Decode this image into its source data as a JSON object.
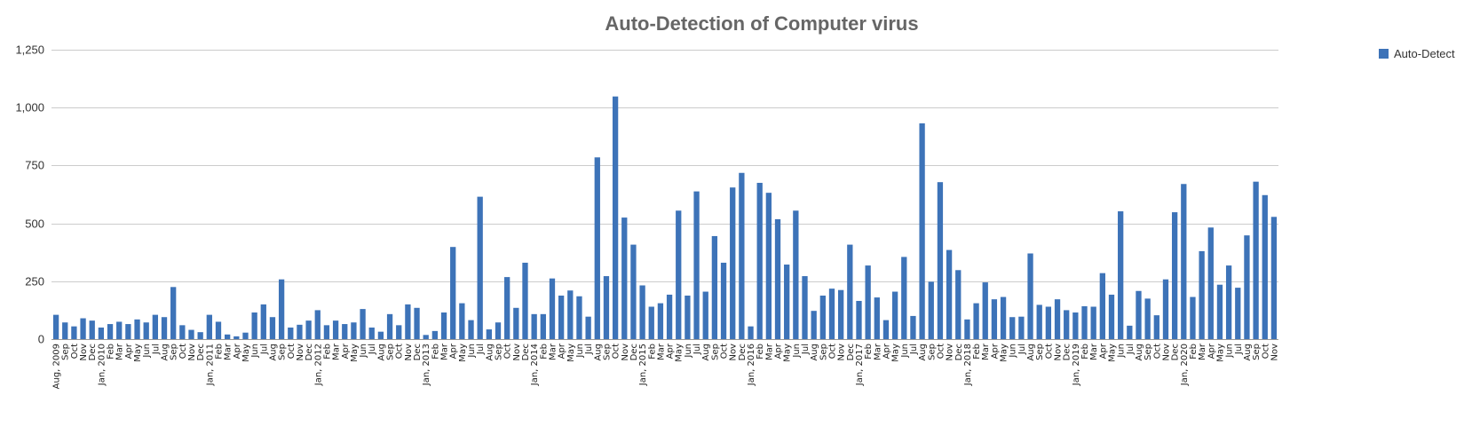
{
  "chart_data": {
    "type": "bar",
    "title": "Auto-Detection of Computer virus",
    "xlabel": "",
    "ylabel": "",
    "ylim": [
      0,
      1250
    ],
    "yticks": [
      "0",
      "250",
      "500",
      "750",
      "1,000",
      "1,250"
    ],
    "ytick_values": [
      0,
      250,
      500,
      750,
      1000,
      1250
    ],
    "grid": true,
    "legend_position": "top-right",
    "color": "#3d73b8",
    "categories": [
      "Aug, 2009",
      "Sep",
      "Oct",
      "Nov",
      "Dec",
      "Jan, 2010",
      "Feb",
      "Mar",
      "Apr",
      "May",
      "Jun",
      "Jul",
      "Aug",
      "Sep",
      "Oct",
      "Nov",
      "Dec",
      "Jan, 2011",
      "Feb",
      "Mar",
      "Apr",
      "May",
      "Jun",
      "Jul",
      "Aug",
      "Sep",
      "Oct",
      "Nov",
      "Dec",
      "Jan, 2012",
      "Feb",
      "Mar",
      "Apr",
      "May",
      "Jun",
      "Jul",
      "Aug",
      "Sep",
      "Oct",
      "Nov",
      "Dec",
      "Jan, 2013",
      "Feb",
      "Mar",
      "Apr",
      "May",
      "Jun",
      "Jul",
      "Aug",
      "Sep",
      "Oct",
      "Nov",
      "Dec",
      "Jan, 2014",
      "Feb",
      "Mar",
      "Apr",
      "May",
      "Jun",
      "Jul",
      "Aug",
      "Sep",
      "Oct",
      "Nov",
      "Dec",
      "Jan, 2015",
      "Feb",
      "Mar",
      "Apr",
      "May",
      "Jun",
      "Jul",
      "Aug",
      "Sep",
      "Oct",
      "Nov",
      "Dec",
      "Jan, 2016",
      "Feb",
      "Mar",
      "Apr",
      "May",
      "Jun",
      "Jul",
      "Aug",
      "Sep",
      "Oct",
      "Nov",
      "Dec",
      "Jan, 2017",
      "Feb",
      "Mar",
      "Apr",
      "May",
      "Jun",
      "Jul",
      "Aug",
      "Sep",
      "Oct",
      "Nov",
      "Dec",
      "Jan, 2018",
      "Feb",
      "Mar",
      "Apr",
      "May",
      "Jun",
      "Jul",
      "Aug",
      "Sep",
      "Oct",
      "Nov",
      "Dec",
      "Jan, 2019",
      "Feb",
      "Mar",
      "Apr",
      "May",
      "Jun",
      "Jul",
      "Aug",
      "Sep",
      "Oct",
      "Nov",
      "Dec",
      "Jan, 2020",
      "Feb",
      "Mar",
      "Apr",
      "May",
      "Jun",
      "Jul",
      "Aug",
      "Sep",
      "Oct",
      "Nov"
    ],
    "series": [
      {
        "name": "Auto-Detect",
        "values": [
          105,
          72,
          55,
          90,
          80,
          50,
          65,
          75,
          65,
          85,
          72,
          105,
          95,
          225,
          60,
          40,
          30,
          105,
          75,
          20,
          12,
          28,
          115,
          150,
          95,
          258,
          50,
          62,
          80,
          125,
          60,
          80,
          65,
          72,
          130,
          50,
          32,
          108,
          60,
          150,
          135,
          18,
          35,
          115,
          398,
          155,
          82,
          615,
          42,
          72,
          268,
          135,
          330,
          108,
          108,
          262,
          188,
          210,
          185,
          97,
          785,
          272,
          1048,
          525,
          408,
          232,
          140,
          155,
          192,
          555,
          188,
          638,
          205,
          445,
          330,
          655,
          718,
          55,
          675,
          632,
          518,
          322,
          555,
          272,
          122,
          188,
          218,
          212,
          408,
          165,
          318,
          180,
          82,
          205,
          355,
          100,
          932,
          248,
          678,
          385,
          298,
          85,
          155,
          245,
          172,
          182,
          95,
          97,
          370,
          148,
          140,
          172,
          125,
          115,
          142,
          140,
          285,
          192,
          552,
          58,
          208,
          175,
          103,
          258,
          548,
          670,
          182,
          380,
          482,
          235,
          318,
          222,
          448,
          680,
          622,
          528
        ]
      }
    ]
  }
}
